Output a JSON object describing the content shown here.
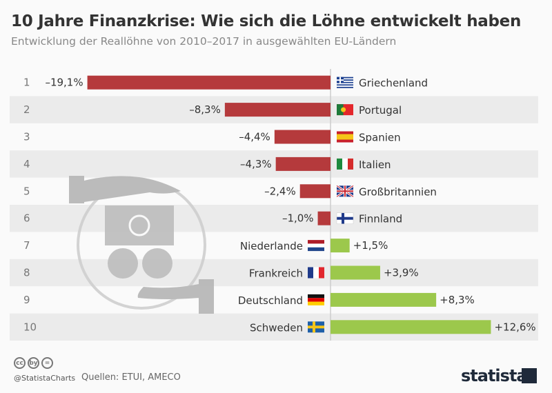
{
  "title": "10 Jahre Finanzkrise: Wie sich die Löhne entwickelt haben",
  "subtitle": "Entwicklung der Reallöhne von 2010–2017 in ausgewählten EU-Ländern",
  "colors": {
    "negative": "#b53a3c",
    "positive": "#9cc84c",
    "band": "#ebebeb"
  },
  "chart_data": {
    "type": "bar",
    "orientation": "horizontal",
    "ranks": [
      "1",
      "2",
      "3",
      "4",
      "5",
      "6",
      "7",
      "8",
      "9",
      "10"
    ],
    "categories": [
      "Griechenland",
      "Portugal",
      "Spanien",
      "Italien",
      "Großbritannien",
      "Finnland",
      "Niederlande",
      "Frankreich",
      "Deutschland",
      "Schweden"
    ],
    "values": [
      -19.1,
      -8.3,
      -4.4,
      -4.3,
      -2.4,
      -1.0,
      1.5,
      3.9,
      8.3,
      12.6
    ],
    "labels": [
      "–19,1%",
      "–8,3%",
      "–4,4%",
      "–4,3%",
      "–2,4%",
      "–1,0%",
      "+1,5%",
      "+3,9%",
      "+8,3%",
      "+12,6%"
    ],
    "flags": [
      "greece",
      "portugal",
      "spain",
      "italy",
      "uk",
      "finland",
      "netherlands",
      "france",
      "germany",
      "sweden"
    ],
    "xlim": [
      -19.1,
      16
    ],
    "grid": false
  },
  "footer": {
    "handle": "@StatistaCharts",
    "sources": "Quellen: ETUI, AMECO",
    "cc_icons": [
      "cc",
      "by",
      "="
    ],
    "logo": "statista"
  }
}
